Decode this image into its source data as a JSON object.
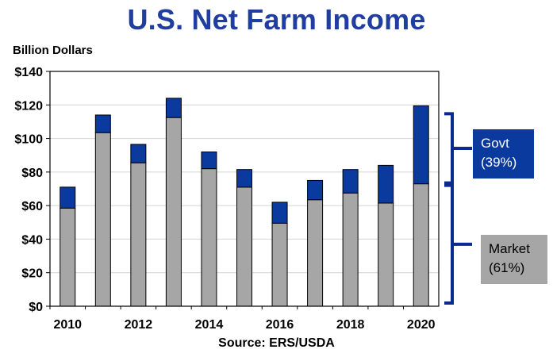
{
  "chart_data": {
    "type": "bar",
    "stacked": true,
    "title": "U.S. Net Farm Income",
    "ylabel": "Billion Dollars",
    "xlabel": "",
    "source": "Source:  ERS/USDA",
    "categories": [
      "2010",
      "2011",
      "2012",
      "2013",
      "2014",
      "2015",
      "2016",
      "2017",
      "2018",
      "2019",
      "2020"
    ],
    "series": [
      {
        "values": [
          58.5,
          103.5,
          85.5,
          112.5,
          82,
          71,
          49.5,
          63.5,
          67.5,
          61.5,
          73
        ],
        "color": "#a6a6a6"
      },
      {
        "values": [
          12.5,
          10.5,
          11,
          11.5,
          10,
          10.5,
          12.5,
          11.5,
          14,
          22.5,
          46.5
        ],
        "color": "#0a3a9e"
      }
    ],
    "ylim": [
      0,
      140
    ],
    "yticks": [
      0,
      20,
      40,
      60,
      80,
      100,
      120,
      140
    ],
    "ytick_labels": [
      "$0",
      "$20",
      "$40",
      "$60",
      "$80",
      "$100",
      "$120",
      "$140"
    ],
    "xtick_labels": [
      "2010",
      "",
      "2012",
      "",
      "2014",
      "",
      "2016",
      "",
      "2018",
      "",
      "2020"
    ],
    "grid": true,
    "annotations": {
      "govt": {
        "line1": "Govt",
        "line2": "(39%)"
      },
      "market": {
        "line1": "Market",
        "line2": "(61%)"
      }
    },
    "colors": {
      "market": "#a6a6a6",
      "govt": "#0a3a9e",
      "bracket": "#0a2a8e",
      "title": "#1f3ea0"
    }
  }
}
